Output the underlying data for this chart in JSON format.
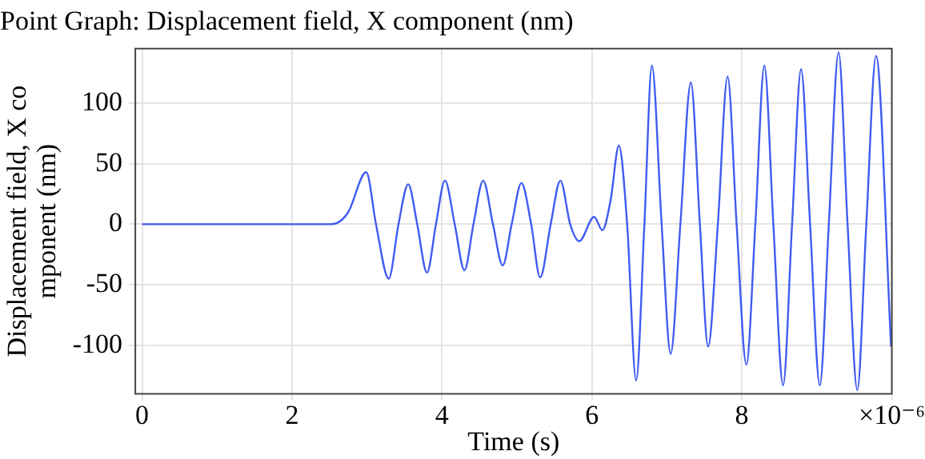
{
  "chart_data": {
    "type": "line",
    "title": "Point Graph: Displacement field, X component (nm)",
    "xlabel": "Time (s)",
    "ylabel": "Displacement field, X co\nmponent (nm)",
    "xlim": [
      -0.09,
      10
    ],
    "xticks": [
      0,
      2,
      4,
      6,
      8,
      {
        "value": 10,
        "label": "×10⁻⁶"
      }
    ],
    "ylim": [
      -140,
      145
    ],
    "yticks": [
      -100,
      -50,
      0,
      50,
      100
    ],
    "grid": true,
    "line_style": "solid",
    "marker": "none",
    "series": [
      {
        "color": "#3f5cf2",
        "x": [
          0,
          1,
          2,
          2.5,
          2.6,
          2.75,
          2.99,
          3.12,
          3.29,
          3.42,
          3.55,
          3.67,
          3.8,
          3.92,
          4.04,
          4.17,
          4.3,
          4.42,
          4.55,
          4.68,
          4.81,
          4.93,
          5.06,
          5.19,
          5.31,
          5.45,
          5.58,
          5.71,
          5.83,
          6.03,
          6.14,
          6.25,
          6.36,
          6.47,
          6.59,
          6.7,
          6.8,
          6.93,
          7.05,
          7.18,
          7.32,
          7.44,
          7.55,
          7.68,
          7.81,
          7.93,
          8.06,
          8.18,
          8.3,
          8.42,
          8.55,
          8.67,
          8.79,
          8.91,
          9.04,
          9.16,
          9.29,
          9.41,
          9.54,
          9.66,
          9.79,
          9.99
        ],
        "values": [
          0,
          0,
          0,
          0,
          1,
          10,
          43,
          0,
          -45,
          0,
          33,
          0,
          -40,
          0,
          36,
          0,
          -38,
          0,
          36,
          0,
          -34,
          0,
          34,
          0,
          -44,
          0,
          36,
          0,
          -14,
          6,
          -5,
          20,
          65,
          0,
          -129,
          0,
          131,
          0,
          -107,
          0,
          117,
          0,
          -101,
          0,
          122,
          0,
          -116,
          0,
          131,
          0,
          -133,
          0,
          128,
          0,
          -133,
          0,
          142,
          0,
          -137,
          0,
          139,
          -101
        ]
      }
    ]
  }
}
